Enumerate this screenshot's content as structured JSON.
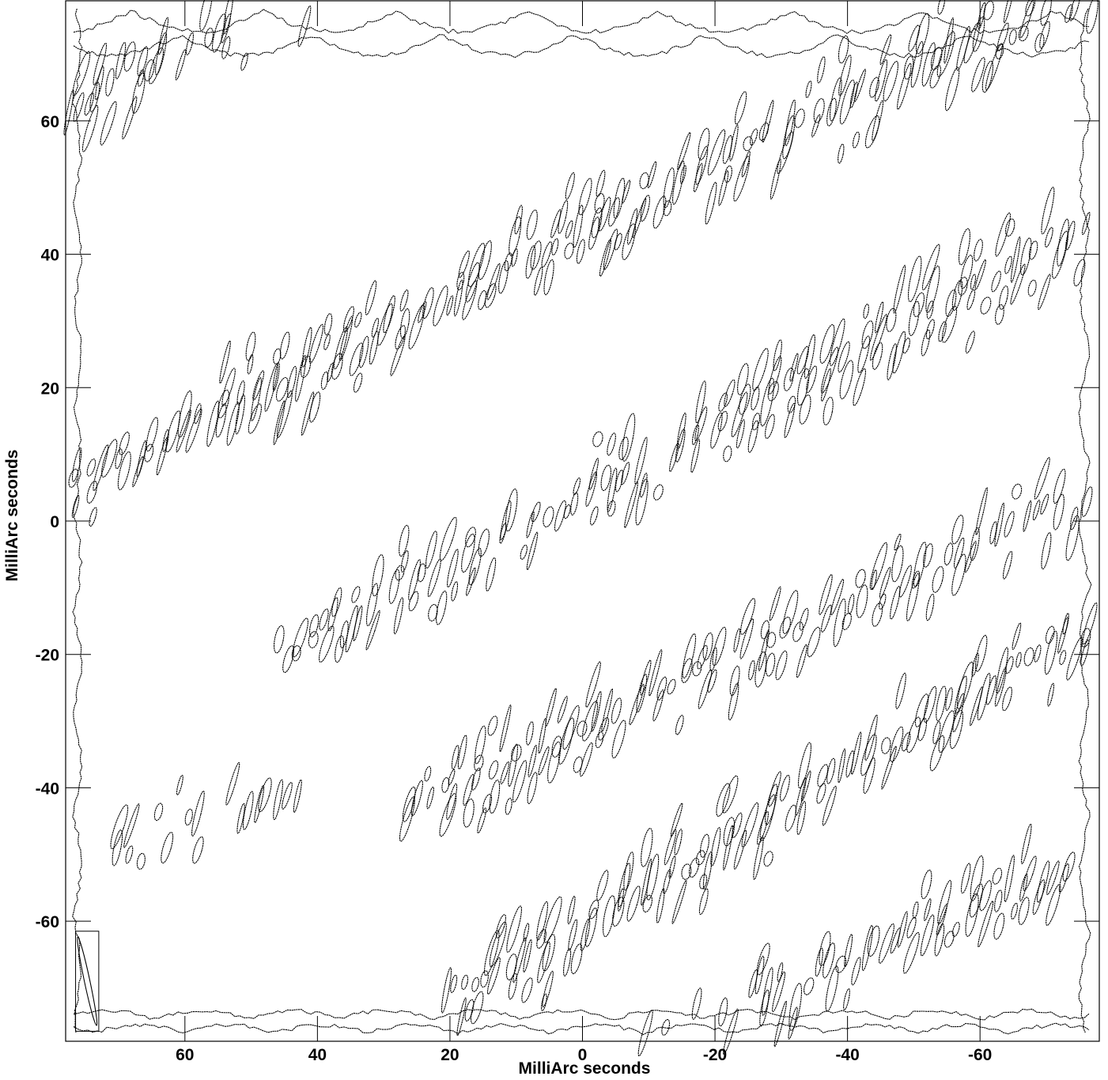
{
  "chart_data": {
    "type": "contour",
    "title": "",
    "xlabel": "MilliArc seconds",
    "ylabel": "MilliArc seconds",
    "xlim": [
      78,
      -78
    ],
    "ylim": [
      -78,
      78
    ],
    "x_ticks": [
      60,
      40,
      20,
      0,
      -20,
      -40,
      -60
    ],
    "y_ticks": [
      60,
      40,
      20,
      0,
      -20,
      -40,
      -60
    ],
    "x_tick_labels": [
      "60",
      "40",
      "20",
      "0",
      "-20",
      "-40",
      "-60"
    ],
    "y_tick_labels": [
      "60",
      "40",
      "20",
      "0",
      "-20",
      "-40",
      "-60"
    ],
    "grid": false,
    "line_color": "#000000",
    "beam_box": {
      "x_range": [
        76.5,
        73
      ],
      "y_range": [
        -61.5,
        -76.5
      ]
    },
    "fringe_bands": [
      {
        "x_start": 78,
        "y_start": 5,
        "x_end": -78,
        "y_end": 82,
        "density": 1.0
      },
      {
        "x_start": 78,
        "y_start": 62,
        "x_end": -10,
        "y_end": 110,
        "density": 0.6
      },
      {
        "x_start": 45,
        "y_start": -20,
        "x_end": -78,
        "y_end": 45,
        "density": 0.9
      },
      {
        "x_start": 30,
        "y_start": -45,
        "x_end": -78,
        "y_end": 5,
        "density": 0.8
      },
      {
        "x_start": 20,
        "y_start": -72,
        "x_end": -78,
        "y_end": -15,
        "density": 1.0
      },
      {
        "x_start": 75,
        "y_start": -50,
        "x_end": 40,
        "y_end": -40,
        "density": 0.5
      },
      {
        "x_start": 5,
        "y_start": -85,
        "x_end": -78,
        "y_end": -50,
        "density": 0.7
      }
    ]
  }
}
